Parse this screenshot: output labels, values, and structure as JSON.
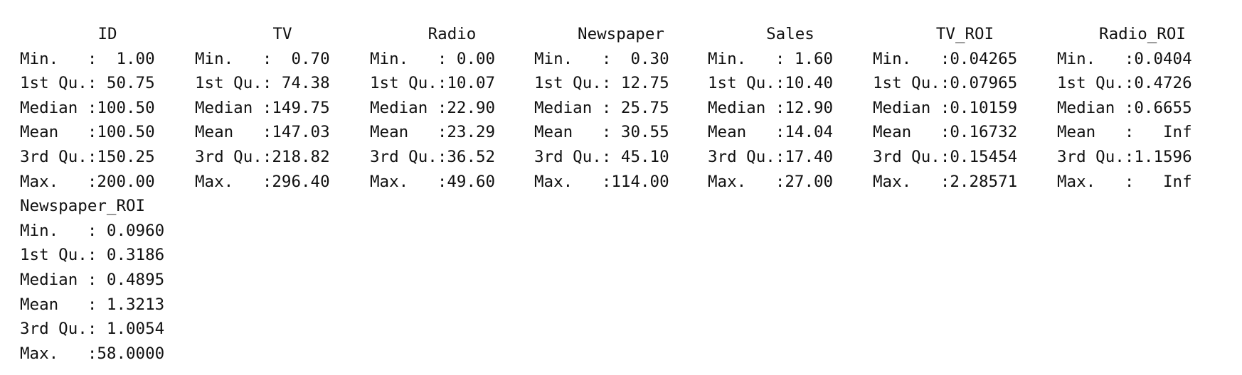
{
  "summary_output": {
    "block1": {
      "columns": [
        {
          "header": "ID",
          "lines": [
            "Min.   :  1.00",
            "1st Qu.: 50.75",
            "Median :100.50",
            "Mean   :100.50",
            "3rd Qu.:150.25",
            "Max.   :200.00"
          ]
        },
        {
          "header": "TV",
          "lines": [
            "Min.   :  0.70",
            "1st Qu.: 74.38",
            "Median :149.75",
            "Mean   :147.03",
            "3rd Qu.:218.82",
            "Max.   :296.40"
          ]
        },
        {
          "header": "Radio",
          "lines": [
            "Min.   : 0.00",
            "1st Qu.:10.07",
            "Median :22.90",
            "Mean   :23.29",
            "3rd Qu.:36.52",
            "Max.   :49.60"
          ]
        },
        {
          "header": "Newspaper",
          "lines": [
            "Min.   :  0.30",
            "1st Qu.: 12.75",
            "Median : 25.75",
            "Mean   : 30.55",
            "3rd Qu.: 45.10",
            "Max.   :114.00"
          ]
        },
        {
          "header": "Sales",
          "lines": [
            "Min.   : 1.60",
            "1st Qu.:10.40",
            "Median :12.90",
            "Mean   :14.04",
            "3rd Qu.:17.40",
            "Max.   :27.00"
          ]
        },
        {
          "header": "TV_ROI",
          "lines": [
            "Min.   :0.04265",
            "1st Qu.:0.07965",
            "Median :0.10159",
            "Mean   :0.16732",
            "3rd Qu.:0.15454",
            "Max.   :2.28571"
          ]
        },
        {
          "header": "Radio_ROI",
          "lines": [
            "Min.   :0.0404",
            "1st Qu.:0.4726",
            "Median :0.6655",
            "Mean   :   Inf",
            "3rd Qu.:1.1596",
            "Max.   :   Inf"
          ]
        }
      ]
    },
    "block2": {
      "columns": [
        {
          "header": "Newspaper_ROI",
          "lines": [
            "Min.   : 0.0960",
            "1st Qu.: 0.3186",
            "Median : 0.4895",
            "Mean   : 1.3213",
            "3rd Qu.: 1.0054",
            "Max.   :58.0000"
          ]
        }
      ]
    }
  }
}
